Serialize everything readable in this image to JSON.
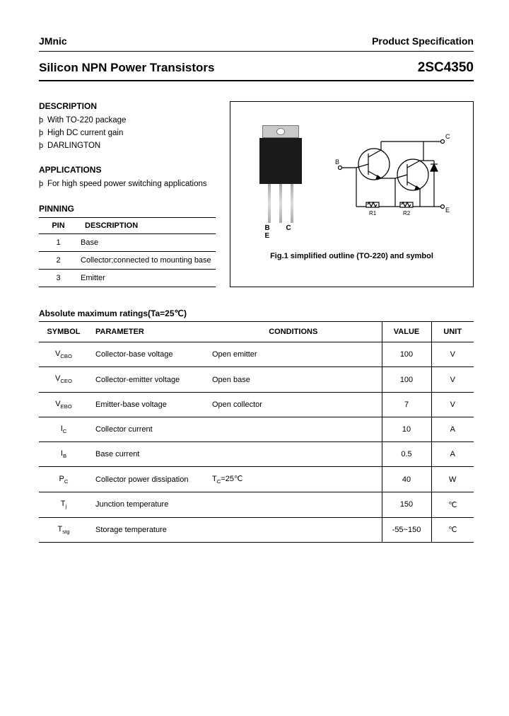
{
  "header": {
    "company": "JMnic",
    "spec": "Product Specification"
  },
  "title": {
    "main": "Silicon NPN Power Transistors",
    "part": "2SC4350"
  },
  "description": {
    "heading": "DESCRIPTION",
    "items": [
      "With TO-220 package",
      "High DC current gain",
      "DARLINGTON"
    ]
  },
  "applications": {
    "heading": "APPLICATIONS",
    "items": [
      "For high speed power switching applications"
    ]
  },
  "pinning": {
    "heading": "PINNING",
    "col_pin": "PIN",
    "col_desc": "DESCRIPTION",
    "rows": [
      {
        "pin": "1",
        "desc": "Base"
      },
      {
        "pin": "2",
        "desc": "Collector;connected to mounting base"
      },
      {
        "pin": "3",
        "desc": "Emitter"
      }
    ]
  },
  "figure": {
    "leg_labels": "B C E",
    "caption": "Fig.1 simplified outline (TO-220) and symbol",
    "schematic": {
      "terminals": {
        "B": "B",
        "C": "C",
        "E": "E"
      },
      "resistors": [
        "R1",
        "R2"
      ],
      "stroke": "#000000"
    }
  },
  "ratings": {
    "heading": "Absolute maximum ratings(Ta=25℃)",
    "columns": {
      "symbol": "SYMBOL",
      "parameter": "PARAMETER",
      "conditions": "CONDITIONS",
      "value": "VALUE",
      "unit": "UNIT"
    },
    "rows": [
      {
        "sym_main": "V",
        "sym_sub": "CBO",
        "param": "Collector-base voltage",
        "cond": "Open emitter",
        "val": "100",
        "unit": "V"
      },
      {
        "sym_main": "V",
        "sym_sub": "CEO",
        "param": "Collector-emitter voltage",
        "cond": "Open base",
        "val": "100",
        "unit": "V"
      },
      {
        "sym_main": "V",
        "sym_sub": "EBO",
        "param": "Emitter-base voltage",
        "cond": "Open collector",
        "val": "7",
        "unit": "V"
      },
      {
        "sym_main": "I",
        "sym_sub": "C",
        "param": "Collector current",
        "cond": "",
        "val": "10",
        "unit": "A"
      },
      {
        "sym_main": "I",
        "sym_sub": "B",
        "param": "Base current",
        "cond": "",
        "val": "0.5",
        "unit": "A"
      },
      {
        "sym_main": "P",
        "sym_sub": "C",
        "param": "Collector power dissipation",
        "cond": "T_C=25℃",
        "val": "40",
        "unit": "W"
      },
      {
        "sym_main": "T",
        "sym_sub": "j",
        "param": "Junction temperature",
        "cond": "",
        "val": "150",
        "unit": "℃"
      },
      {
        "sym_main": "T",
        "sym_sub": "stg",
        "param": "Storage temperature",
        "cond": "",
        "val": "-55~150",
        "unit": "℃"
      }
    ]
  }
}
